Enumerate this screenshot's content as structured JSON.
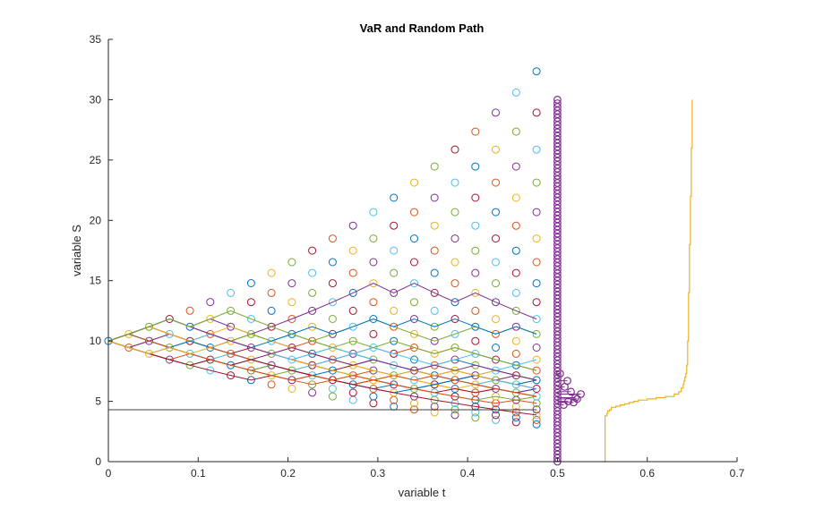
{
  "chart_data": {
    "type": "scatter",
    "title": "VaR and Random Path",
    "xlabel": "variable t",
    "ylabel": "variable S",
    "xlim": [
      0,
      0.7
    ],
    "ylim": [
      0,
      35
    ],
    "xticks": [
      0,
      0.1,
      0.2,
      0.3,
      0.4,
      0.5,
      0.6,
      0.7
    ],
    "yticks": [
      0,
      5,
      10,
      15,
      20,
      25,
      30,
      35
    ],
    "xtick_labels": [
      "0",
      "0.1",
      "0.2",
      "0.3",
      "0.4",
      "0.5",
      "0.6",
      "0.7"
    ],
    "ytick_labels": [
      "0",
      "5",
      "10",
      "15",
      "20",
      "25",
      "30",
      "35"
    ],
    "grid": false,
    "tree": {
      "S0": 10,
      "steps": 21,
      "dt": 0.0227,
      "u": 1.0575,
      "d": 0.9456,
      "colors": [
        "#0072BD",
        "#D95319",
        "#EDB120",
        "#7E2F8E",
        "#77AC30",
        "#4DBEEE",
        "#A2142F"
      ]
    },
    "var_line": {
      "y": 4.3,
      "x_range": [
        0,
        0.477
      ],
      "color": "#404040"
    },
    "terminal_distribution": {
      "x": 0.5,
      "y_range": [
        0,
        30
      ],
      "color": "#7E2F8E"
    },
    "histogram_stem": {
      "x": 0.5,
      "points": [
        [
          0.507,
          4.7
        ],
        [
          0.512,
          5.0
        ],
        [
          0.52,
          5.3
        ],
        [
          0.526,
          5.6
        ],
        [
          0.515,
          5.8
        ],
        [
          0.508,
          6.2
        ],
        [
          0.511,
          6.7
        ],
        [
          0.503,
          7.3
        ],
        [
          0.518,
          4.9
        ],
        [
          0.522,
          5.2
        ]
      ],
      "color": "#7E2F8E"
    },
    "cdf_curve": {
      "color": "#EDB120",
      "x": [
        0.55,
        0.553,
        0.555,
        0.556,
        0.558,
        0.56,
        0.565,
        0.57,
        0.575,
        0.58,
        0.585,
        0.59,
        0.6,
        0.61,
        0.62,
        0.63,
        0.635,
        0.638,
        0.64,
        0.641,
        0.642,
        0.643,
        0.644,
        0.645,
        0.646,
        0.647,
        0.648,
        0.649,
        0.65
      ],
      "y": [
        0,
        3.8,
        4.0,
        4.2,
        4.3,
        4.5,
        4.6,
        4.7,
        4.8,
        4.9,
        5.0,
        5.1,
        5.2,
        5.3,
        5.4,
        5.6,
        5.8,
        6.1,
        6.4,
        6.7,
        7.0,
        7.3,
        8.0,
        10.0,
        14.0,
        18.0,
        22.0,
        26.0,
        30.0
      ]
    },
    "random_path_count": 26,
    "random_path_colors": [
      "#0072BD",
      "#D95319",
      "#EDB120",
      "#7E2F8E",
      "#77AC30",
      "#4DBEEE",
      "#A2142F"
    ]
  }
}
